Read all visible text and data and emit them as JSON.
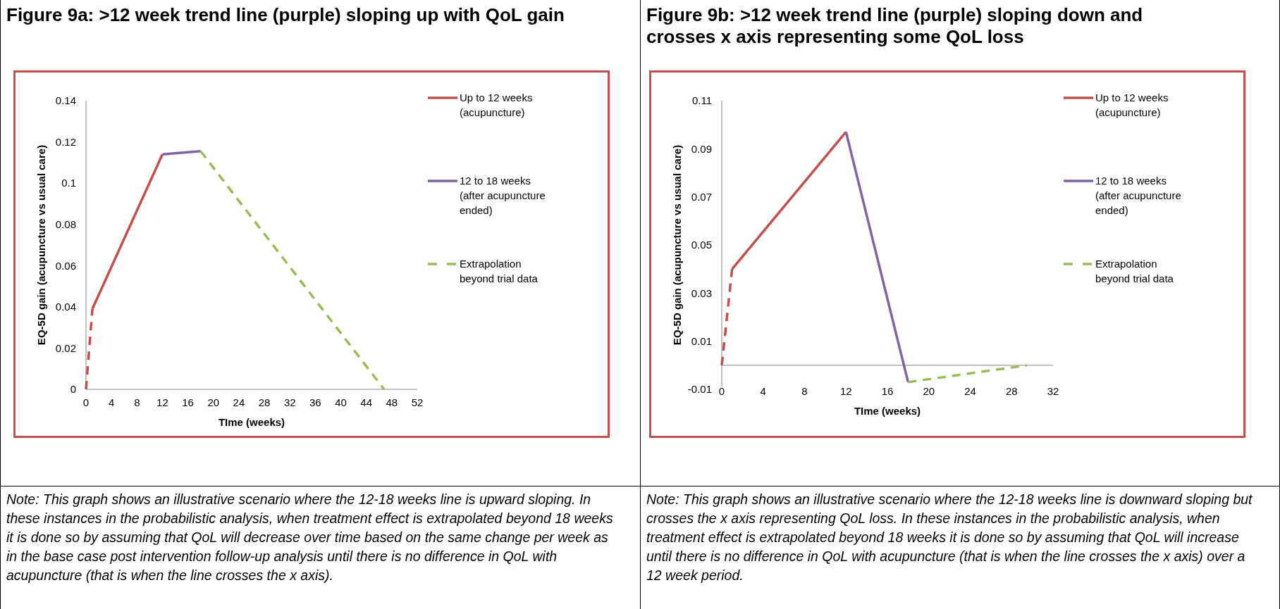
{
  "chart_data": [
    {
      "type": "line",
      "title": "Figure 9a: >12 week trend line (purple) sloping up with QoL gain",
      "xlabel": "TIme (weeks)",
      "ylabel": "EQ-5D gain (acupuncture vs usual care)",
      "xlim": [
        0,
        52
      ],
      "xticks": [
        0,
        4,
        8,
        12,
        16,
        20,
        24,
        28,
        32,
        36,
        40,
        44,
        48,
        52
      ],
      "ylim": [
        0,
        0.14
      ],
      "yticks": [
        0,
        0.02,
        0.04,
        0.06,
        0.08,
        0.1,
        0.12,
        0.14
      ],
      "legend": "right",
      "grid": false,
      "marker": "none",
      "series": [
        {
          "color": "#c0504d",
          "line_style": "dashed",
          "x": [
            0,
            1
          ],
          "values": [
            0,
            0.039
          ]
        },
        {
          "name": "Up to 12 weeks (acupuncture)",
          "color": "#c0504d",
          "line_style": "solid",
          "x": [
            1,
            12
          ],
          "values": [
            0.039,
            0.114
          ]
        },
        {
          "name": "12 to 18 weeks (after acupuncture ended)",
          "color": "#8064a2",
          "line_style": "solid",
          "x": [
            12,
            18
          ],
          "values": [
            0.114,
            0.1155
          ]
        },
        {
          "name": "Extrapolation beyond trial data",
          "color": "#9bbb59",
          "line_style": "dashed",
          "x": [
            18,
            46.8
          ],
          "values": [
            0.1155,
            0
          ]
        }
      ],
      "annotations": [
        "Note: This graph shows an illustrative scenario where the 12-18 weeks line is upward sloping. In these instances in the probabilistic analysis, when treatment effect is extrapolated beyond 18 weeks it is done so by assuming that QoL will decrease over time based on the same change per week as in the base case post intervention follow-up analysis until there is no difference in QoL with acupuncture (that is when the line crosses the x axis)."
      ]
    },
    {
      "type": "line",
      "title": "Figure 9b: >12 week trend line (purple) sloping down and crosses x axis representing some QoL loss",
      "xlabel": "TIme (weeks)",
      "ylabel": "EQ-5D gain (acupuncture vs usual care)",
      "xlim": [
        0,
        32
      ],
      "xticks": [
        0,
        4,
        8,
        12,
        16,
        20,
        24,
        28,
        32
      ],
      "ylim": [
        -0.01,
        0.11
      ],
      "yticks": [
        -0.01,
        0.01,
        0.03,
        0.05,
        0.07,
        0.09,
        0.11
      ],
      "legend": "right",
      "grid": false,
      "marker": "none",
      "series": [
        {
          "color": "#c0504d",
          "line_style": "dashed",
          "x": [
            0,
            1
          ],
          "values": [
            0,
            0.04
          ]
        },
        {
          "name": "Up to 12 weeks (acupuncture)",
          "color": "#c0504d",
          "line_style": "solid",
          "x": [
            1,
            12
          ],
          "values": [
            0.04,
            0.097
          ]
        },
        {
          "name": "12 to 18 weeks (after acupuncture ended)",
          "color": "#8064a2",
          "line_style": "solid",
          "x": [
            12,
            18
          ],
          "values": [
            0.097,
            -0.007
          ]
        },
        {
          "name": "Extrapolation beyond trial data",
          "color": "#9bbb59",
          "line_style": "dashed",
          "x": [
            18,
            29.5
          ],
          "values": [
            -0.007,
            0
          ]
        }
      ],
      "annotations": [
        "Note: This graph shows an illustrative scenario where the 12-18 weeks line is downward sloping but crosses the x axis representing QoL loss. In these instances in the probabilistic analysis, when treatment effect is extrapolated beyond 18 weeks it is done so by assuming that QoL will increase until there is no difference in QoL with acupuncture (that is when the line crosses the x axis) over a 12 week period."
      ]
    }
  ]
}
